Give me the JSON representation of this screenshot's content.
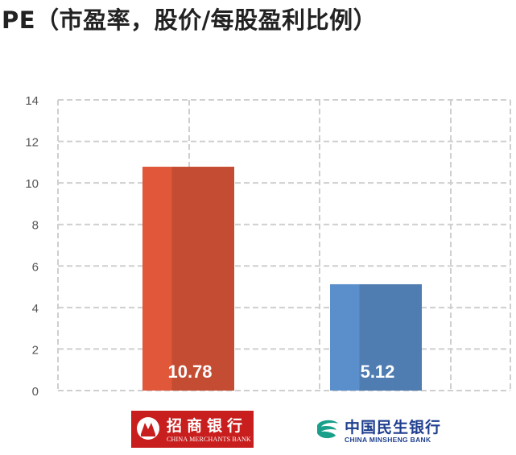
{
  "title": "PE（市盈率，股价/每股盈利比例）",
  "chart_data": {
    "type": "bar",
    "title": "PE（市盈率，股价/每股盈利比例）",
    "xlabel": "",
    "ylabel": "",
    "ylim": [
      0,
      14
    ],
    "yticks": [
      0,
      2,
      4,
      6,
      8,
      10,
      12,
      14
    ],
    "grid": true,
    "categories": [
      "招商银行",
      "中国民生银行"
    ],
    "values": [
      10.78,
      5.12
    ],
    "value_labels": [
      "10.78",
      "5.12"
    ],
    "colors": [
      "#e0573a",
      "#5b8fcb"
    ]
  },
  "logos": {
    "cmb": {
      "cn": "招商银行",
      "en": "CHINA MERCHANTS BANK",
      "color": "#c81e1e"
    },
    "cmsb": {
      "cn": "中国民生银行",
      "en": "CHINA MINSHENG BANK",
      "color": "#1f3f8f"
    }
  }
}
